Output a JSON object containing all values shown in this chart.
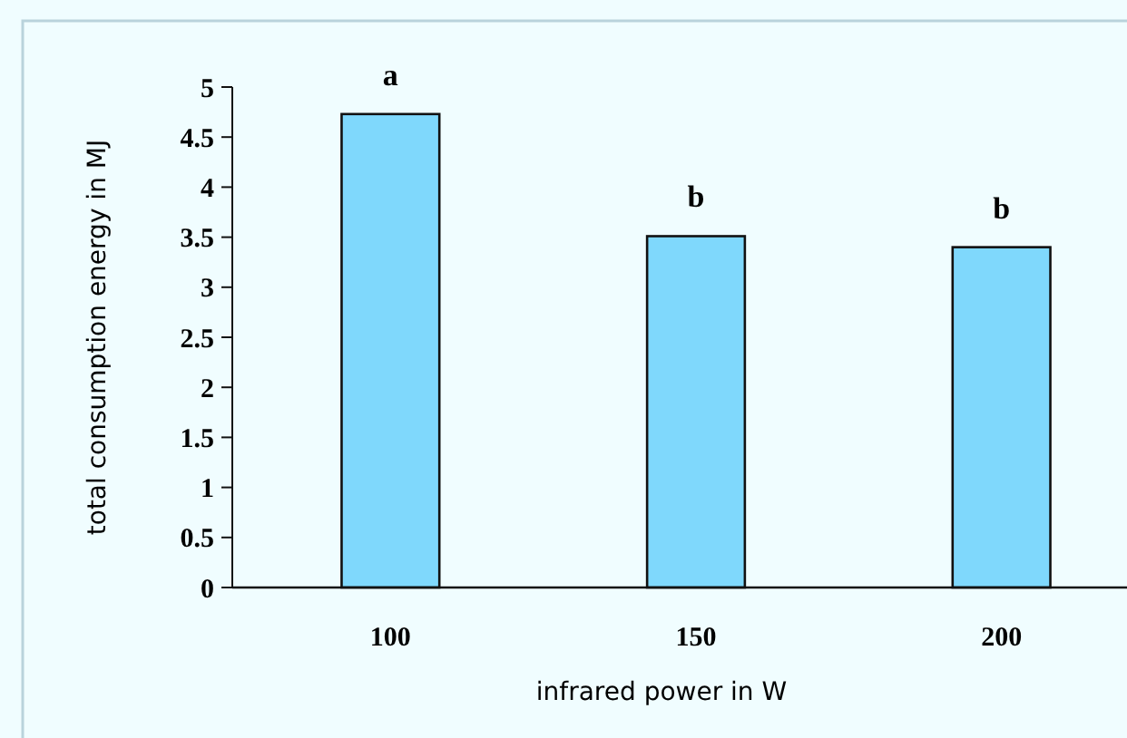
{
  "chart_data": {
    "type": "bar",
    "xlabel": "infrared power in W",
    "ylabel": "total consumption energy in MJ",
    "categories": [
      "100",
      "150",
      "200"
    ],
    "values": [
      4.73,
      3.51,
      3.4
    ],
    "color": "#7fd8fc",
    "ylim": [
      0,
      5
    ],
    "yticks": [
      0,
      0.5,
      1,
      1.5,
      2,
      2.5,
      3,
      3.5,
      4,
      4.5,
      5
    ],
    "annotations": [
      {
        "text": "a",
        "x": "100",
        "y": 4.73
      },
      {
        "text": "b",
        "x": "150",
        "y": 3.51
      },
      {
        "text": "b",
        "x": "200",
        "y": 3.4
      }
    ]
  }
}
